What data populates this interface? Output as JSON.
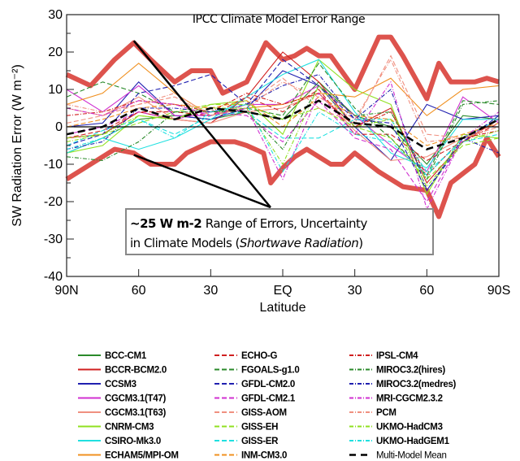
{
  "chart_data": {
    "type": "line",
    "title": "IPCC Climate Model Error Range",
    "xlabel": "Latitude",
    "ylabel": "SW Radiation Error (W m⁻²)",
    "ylim": [
      -40,
      30
    ],
    "xlim": [
      90,
      -90
    ],
    "yticks": [
      30,
      20,
      10,
      0,
      -10,
      -20,
      -30,
      -40
    ],
    "xticks": [
      {
        "v": 90,
        "label": "90N"
      },
      {
        "v": 60,
        "label": "60"
      },
      {
        "v": 30,
        "label": "30"
      },
      {
        "v": 0,
        "label": "EQ"
      },
      {
        "v": -30,
        "label": "30"
      },
      {
        "v": -60,
        "label": "60"
      },
      {
        "v": -90,
        "label": "90S"
      }
    ],
    "annotation": {
      "bold": "~25 W m-2",
      "line1": " Range of Errors, Uncertainty",
      "line2a": "in Climate Models (",
      "line2b": "Shortwave Radiation",
      "line2c": ")"
    },
    "envelope_color": "#d9403a",
    "upper_envelope": {
      "x": [
        90,
        80,
        70,
        62,
        55,
        45,
        38,
        30,
        25,
        15,
        7,
        0,
        -5,
        -10,
        -15,
        -20,
        -30,
        -40,
        -45,
        -50,
        -60,
        -65,
        -70,
        -80,
        -85,
        -90
      ],
      "y": [
        14,
        11,
        18,
        22.5,
        18,
        12,
        15,
        15,
        9,
        12,
        22.5,
        18,
        19,
        21,
        19,
        19,
        10,
        24,
        24,
        19,
        7.5,
        17,
        12,
        12,
        13,
        12
      ]
    },
    "lower_envelope": {
      "x": [
        90,
        80,
        70,
        62,
        55,
        45,
        40,
        30,
        20,
        15,
        8,
        5,
        0,
        -5,
        -10,
        -20,
        -25,
        -30,
        -40,
        -50,
        -60,
        -65,
        -70,
        -80,
        -85,
        -90
      ],
      "y": [
        -14,
        -10,
        -6,
        -7,
        -10,
        -10,
        -7,
        -4,
        -4,
        -5,
        -7,
        -15,
        -11,
        -8,
        -6,
        -10,
        -10,
        -7,
        -12,
        -16,
        -17,
        -24,
        -15,
        -10,
        -3,
        -8
      ]
    },
    "x": [
      90,
      75,
      60,
      45,
      30,
      15,
      0,
      -15,
      -30,
      -45,
      -60,
      -75,
      -90
    ],
    "series": [
      {
        "name": "BCC-CM1",
        "color": "#2a8a2a",
        "style": "solid",
        "values": [
          -7,
          -3,
          2,
          3,
          2,
          4,
          2,
          12,
          3,
          0,
          -10,
          3,
          2
        ]
      },
      {
        "name": "BCCR-BCM2.0",
        "color": "#d02020",
        "style": "solid",
        "values": [
          -3,
          -2,
          4,
          2,
          1,
          8,
          20,
          12,
          0,
          5,
          -15,
          -4,
          2
        ]
      },
      {
        "name": "CCSM3",
        "color": "#2020b0",
        "style": "solid",
        "values": [
          0,
          1,
          12,
          3,
          2,
          5,
          15,
          11,
          0,
          -9,
          6,
          2,
          3
        ]
      },
      {
        "name": "CGCM3.1(T47)",
        "color": "#d030d0",
        "style": "solid",
        "values": [
          10,
          4,
          11,
          3,
          3,
          6,
          6,
          11,
          3,
          -5,
          -12,
          8,
          1
        ]
      },
      {
        "name": "CGCM3.1(T63)",
        "color": "#f09080",
        "style": "solid",
        "values": [
          5,
          3,
          8,
          2,
          1,
          4,
          5,
          9,
          -1,
          -9,
          -8,
          -3,
          2
        ]
      },
      {
        "name": "CNRM-CM3",
        "color": "#90e020",
        "style": "solid",
        "values": [
          -7,
          -5,
          3,
          2,
          6,
          7,
          -2,
          18,
          10,
          6,
          -18,
          -2,
          -3
        ]
      },
      {
        "name": "CSIRO-Mk3.0",
        "color": "#20e0e0",
        "style": "solid",
        "values": [
          -7,
          -3,
          -6,
          -3,
          2,
          8,
          14,
          18,
          4,
          -7,
          -11,
          2,
          2
        ]
      },
      {
        "name": "ECHAM5/MPI-OM",
        "color": "#f09020",
        "style": "solid",
        "values": [
          6,
          9,
          17,
          9,
          3,
          5,
          6,
          9,
          8,
          13,
          3,
          10,
          11
        ]
      },
      {
        "name": "ECHO-G",
        "color": "#d02020",
        "style": "dash",
        "values": [
          -3,
          -1,
          4,
          4,
          3,
          8,
          4,
          10,
          -2,
          -2,
          -9,
          -4,
          1
        ]
      },
      {
        "name": "FGOALS-g1.0",
        "color": "#2a8a2a",
        "style": "dash",
        "values": [
          8,
          12,
          9,
          4,
          4,
          5,
          3,
          17,
          5,
          -3,
          -13,
          7,
          6
        ]
      },
      {
        "name": "GFDL-CM2.0",
        "color": "#2020b0",
        "style": "dash",
        "values": [
          -5,
          -2,
          9,
          11,
          14,
          6,
          18,
          11,
          2,
          1,
          -17,
          -4,
          3
        ]
      },
      {
        "name": "GFDL-CM2.1",
        "color": "#d030d0",
        "style": "dash",
        "values": [
          -2,
          0,
          4,
          2,
          4,
          3,
          -4,
          7,
          -3,
          -6,
          -20,
          -3,
          2
        ]
      },
      {
        "name": "GISS-AOM",
        "color": "#f09080",
        "style": "dash",
        "values": [
          1,
          3,
          6,
          8,
          3,
          6,
          13,
          5,
          1,
          19,
          -2,
          -3,
          0
        ]
      },
      {
        "name": "GISS-EH",
        "color": "#90e020",
        "style": "dash",
        "values": [
          -3,
          -2,
          1,
          4,
          6,
          6,
          2,
          5,
          0,
          -3,
          -14,
          -5,
          -3
        ]
      },
      {
        "name": "GISS-ER",
        "color": "#20e0e0",
        "style": "dash",
        "values": [
          -5,
          -1,
          2,
          -2,
          3,
          4,
          -3,
          -3,
          2,
          2,
          -12,
          -4,
          -2
        ]
      },
      {
        "name": "INM-CM3.0",
        "color": "#f09020",
        "style": "dash",
        "values": [
          0,
          2,
          5,
          6,
          5,
          7,
          0,
          8,
          3,
          2,
          -5,
          -2,
          1
        ]
      },
      {
        "name": "IPSL-CM4",
        "color": "#d02020",
        "style": "dashdot",
        "values": [
          3,
          4,
          7,
          6,
          4,
          9,
          6,
          9,
          0,
          4,
          -13,
          -3,
          -1
        ]
      },
      {
        "name": "MIROC3.2(hires)",
        "color": "#2a8a2a",
        "style": "dashdot",
        "values": [
          -8,
          -9,
          -4,
          4,
          4,
          4,
          -6,
          11,
          3,
          4,
          -14,
          6,
          7
        ]
      },
      {
        "name": "MIROC3.2(medres)",
        "color": "#2020b0",
        "style": "dashdot",
        "values": [
          -6,
          -4,
          5,
          5,
          4,
          6,
          11,
          14,
          2,
          10,
          -17,
          -3,
          -7
        ]
      },
      {
        "name": "MRI-CGCM2.3.2",
        "color": "#d030d0",
        "style": "dashdot",
        "values": [
          5,
          3,
          7,
          6,
          3,
          5,
          -14,
          9,
          -2,
          12,
          -22,
          -3,
          4
        ]
      },
      {
        "name": "PCM",
        "color": "#f09080",
        "style": "dashdot",
        "values": [
          6,
          4,
          6,
          9,
          3,
          5,
          12,
          8,
          2,
          18,
          -4,
          -3,
          1
        ]
      },
      {
        "name": "UKMO-HadCM3",
        "color": "#90e020",
        "style": "dashdot",
        "values": [
          -4,
          -2,
          3,
          2,
          5,
          5,
          -10,
          11,
          0,
          2,
          -16,
          -4,
          -1
        ]
      },
      {
        "name": "UKMO-HadGEM1",
        "color": "#20e0e0",
        "style": "dashdot",
        "values": [
          -6,
          -3,
          2,
          -3,
          4,
          6,
          -12,
          4,
          -2,
          -4,
          -13,
          -3,
          2
        ]
      },
      {
        "name": "Multi-Model Mean",
        "color": "#000000",
        "style": "mean",
        "values": [
          -2,
          0,
          5,
          2,
          5,
          4,
          2,
          7,
          1,
          0,
          -6,
          -3,
          2
        ]
      }
    ]
  }
}
